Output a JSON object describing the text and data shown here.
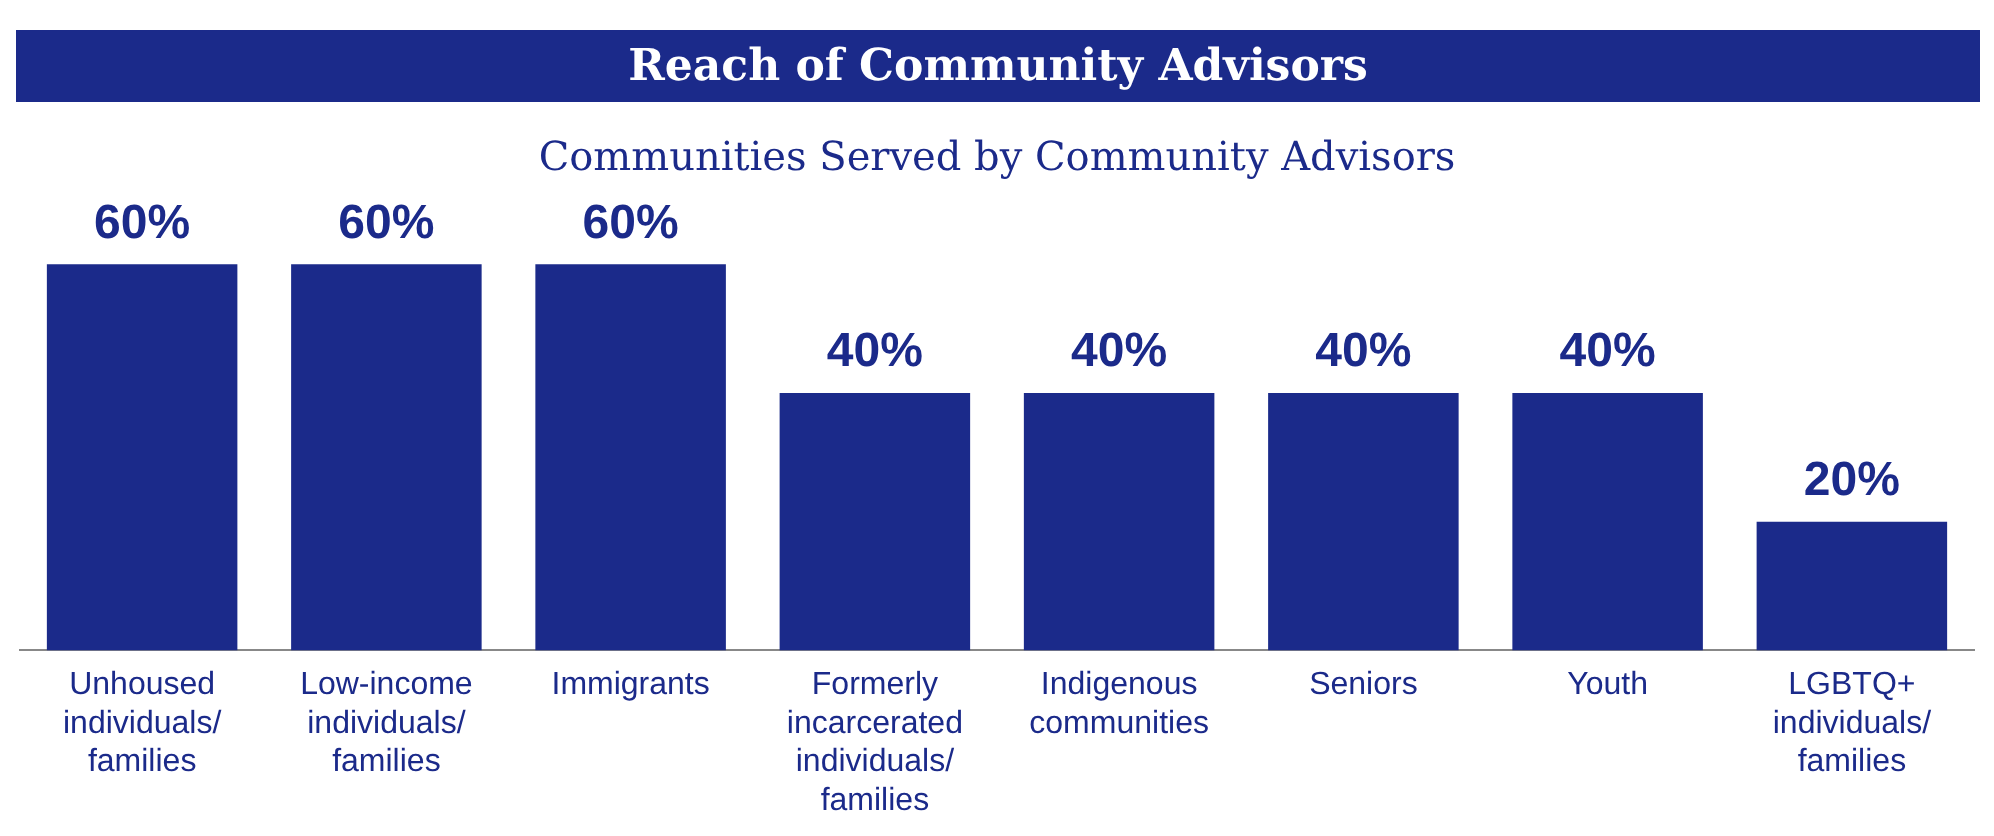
{
  "chart_data": {
    "type": "bar",
    "title": "Reach of Community Advisors",
    "subtitle": "Communities Served by Community Advisors",
    "categories": [
      "Unhoused individuals/ families",
      "Low-income individuals/ families",
      "Immigrants",
      "Formerly incarcerated individuals/ families",
      "Indigenous communities",
      "Seniors",
      "Youth",
      "LGBTQ+ individuals/ families"
    ],
    "values": [
      60,
      60,
      60,
      40,
      40,
      40,
      40,
      20
    ],
    "value_labels": [
      "60%",
      "60%",
      "60%",
      "40%",
      "40%",
      "40%",
      "40%",
      "20%"
    ],
    "color": "#1b2a8a",
    "grid": false,
    "legend": false
  }
}
